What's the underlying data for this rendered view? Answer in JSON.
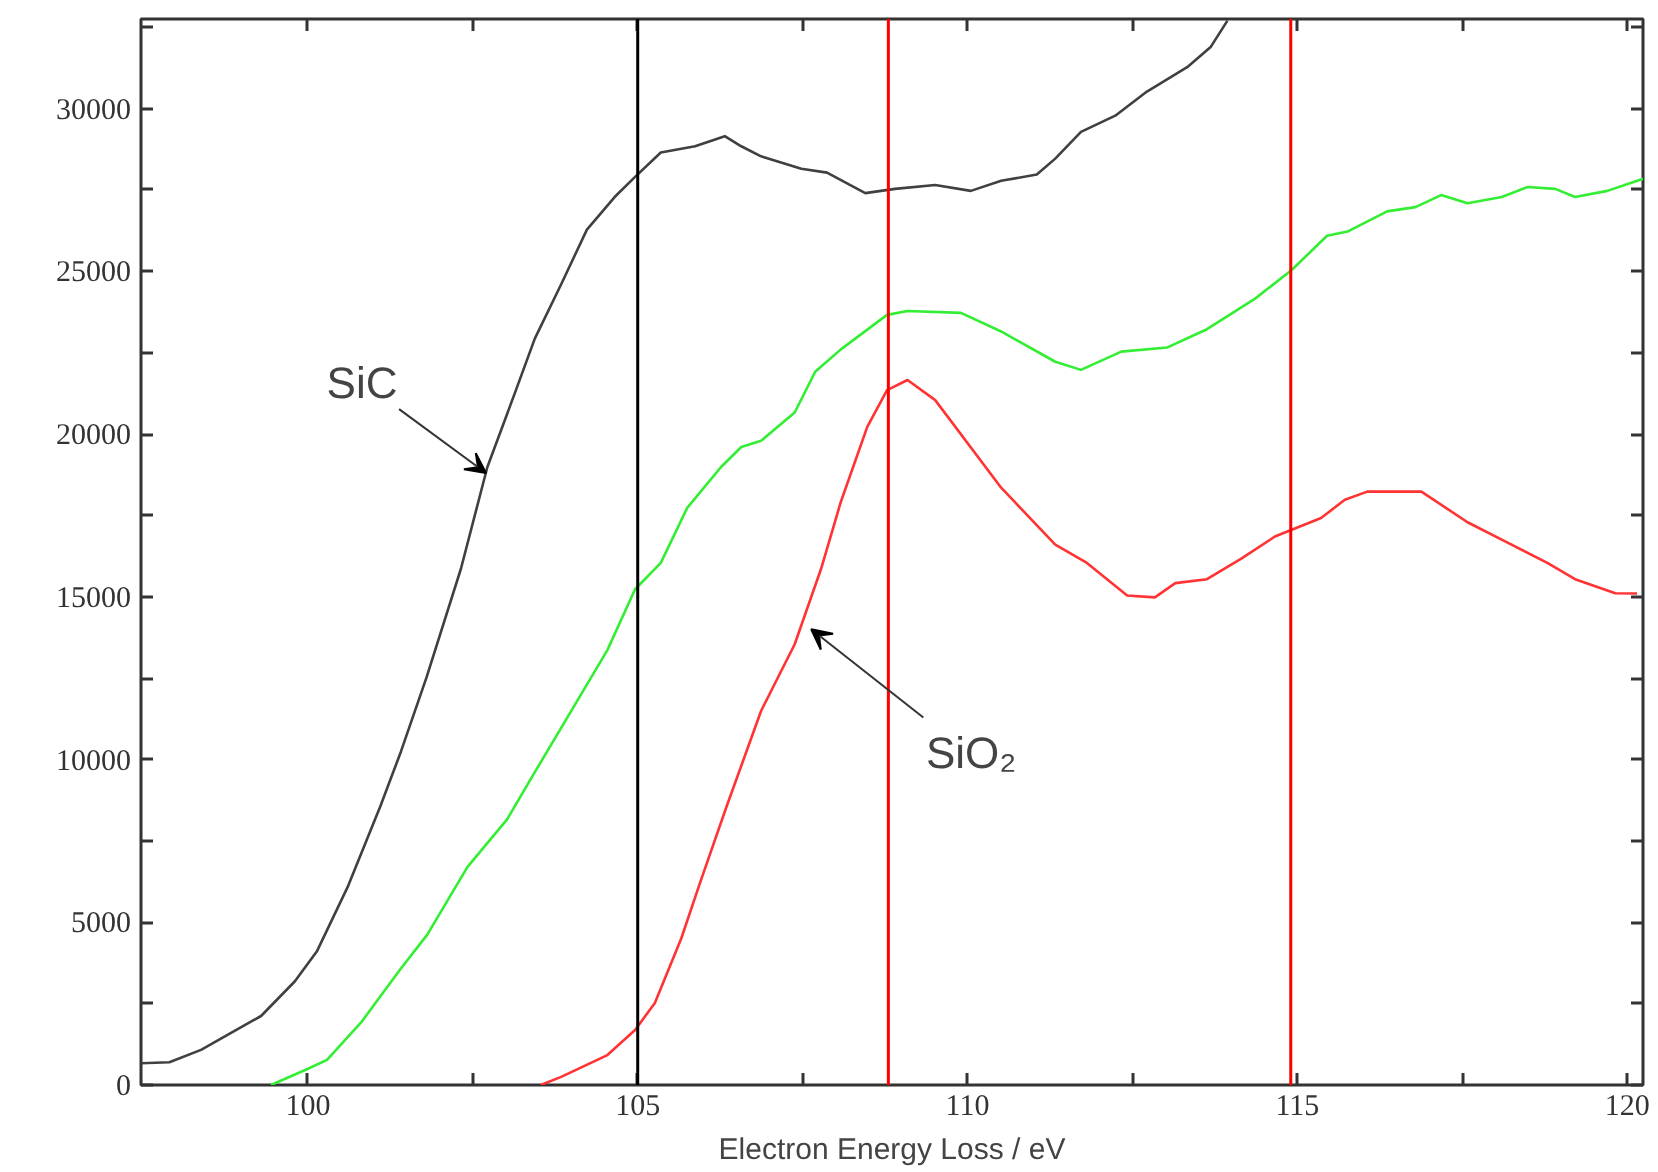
{
  "chart_data": {
    "type": "line",
    "xlabel": "Electron Energy Loss / eV",
    "xlim": [
      97.47,
      120.24
    ],
    "ylim": [
      0,
      32750
    ],
    "xticks": [
      100,
      {
        "value": 102.5,
        "label": null
      },
      105,
      {
        "value": 107.5,
        "label": null
      },
      110,
      {
        "value": 112.5,
        "label": null
      },
      115,
      {
        "value": 117.5,
        "label": null
      },
      120
    ],
    "yticks": [
      0,
      {
        "value": 2500,
        "label": null
      },
      5000,
      {
        "value": 7500,
        "label": null
      },
      10000,
      {
        "value": 12500,
        "label": null
      },
      15000,
      {
        "value": 17500,
        "label": null
      },
      20000,
      {
        "value": 22500,
        "label": null
      },
      25000,
      {
        "value": 27500,
        "label": null
      },
      30000,
      {
        "value": 32500,
        "label": null
      }
    ],
    "grid": false,
    "marker": "none",
    "line_style": "solid",
    "series": [
      {
        "color": "#404040",
        "x": [
          97.47,
          97.9,
          98.38,
          99.29,
          99.8,
          100.14,
          100.6,
          101.1,
          101.41,
          101.8,
          102.32,
          102.72,
          103.14,
          103.44,
          103.84,
          104.23,
          104.65,
          104.96,
          105.35,
          105.87,
          106.32,
          106.57,
          106.87,
          107.48,
          107.87,
          108.45,
          108.9,
          109.51,
          110.05,
          110.51,
          111.05,
          111.33,
          111.72,
          112.24,
          112.72,
          113.33,
          113.69,
          113.94
        ],
        "values": [
          670,
          700,
          1080,
          2120,
          3180,
          4120,
          6070,
          8570,
          10240,
          12530,
          15860,
          18980,
          21270,
          22930,
          24600,
          26280,
          27280,
          27900,
          28650,
          28840,
          29150,
          28840,
          28530,
          28150,
          28030,
          27400,
          27530,
          27650,
          27470,
          27780,
          27970,
          28460,
          29280,
          29780,
          30520,
          31270,
          31900,
          32700
        ]
      },
      {
        "color": "#33ee33",
        "x": [
          99.44,
          99.96,
          100.29,
          100.81,
          101.41,
          101.81,
          102.42,
          103.02,
          103.44,
          103.93,
          104.54,
          104.96,
          105.35,
          105.75,
          106.26,
          106.57,
          106.87,
          107.38,
          107.69,
          108.08,
          108.78,
          109.09,
          109.9,
          110.51,
          111.33,
          111.72,
          112.33,
          113.03,
          113.63,
          114.36,
          114.91,
          115.45,
          115.76,
          116.36,
          116.79,
          117.18,
          117.58,
          118.1,
          118.49,
          118.91,
          119.21,
          119.7,
          120.24
        ],
        "values": [
          0,
          460,
          770,
          1930,
          3580,
          4620,
          6700,
          8160,
          9610,
          11280,
          13360,
          15230,
          16040,
          17730,
          18980,
          19600,
          19790,
          20660,
          21910,
          22600,
          23660,
          23780,
          23720,
          23150,
          22220,
          21970,
          22530,
          22660,
          23220,
          24160,
          25030,
          26090,
          26220,
          26840,
          26970,
          27340,
          27090,
          27280,
          27590,
          27530,
          27280,
          27470,
          27840
        ]
      },
      {
        "color": "#ff3333",
        "x": [
          103.53,
          103.84,
          104.54,
          104.96,
          105.26,
          105.66,
          105.96,
          106.35,
          106.87,
          107.38,
          107.78,
          108.08,
          108.48,
          108.78,
          109.09,
          109.51,
          110.51,
          111.33,
          111.81,
          112.42,
          112.84,
          113.15,
          113.63,
          114.15,
          114.66,
          115.36,
          115.72,
          116.06,
          116.88,
          117.58,
          118.18,
          118.79,
          119.21,
          119.82,
          120.15
        ],
        "values": [
          0,
          250,
          920,
          1690,
          2520,
          4500,
          6300,
          8570,
          11490,
          13540,
          15860,
          17920,
          20220,
          21350,
          21660,
          21040,
          18350,
          16600,
          16040,
          15040,
          14980,
          15420,
          15540,
          16170,
          16850,
          17420,
          17980,
          18230,
          18230,
          17290,
          16670,
          16040,
          15540,
          15110,
          15100
        ]
      }
    ],
    "ref_lines": [
      {
        "axis": "x",
        "value": 105,
        "color": "#000000"
      },
      {
        "axis": "x",
        "value": 108.8,
        "color": "#ff0000"
      },
      {
        "axis": "x",
        "value": 114.9,
        "color": "#ff0000"
      }
    ],
    "annotations": [
      {
        "text": "SiC",
        "x": 102.7,
        "y": 18800
      },
      {
        "text": "SiO₂",
        "x": 107.63,
        "y": 14000
      }
    ]
  }
}
